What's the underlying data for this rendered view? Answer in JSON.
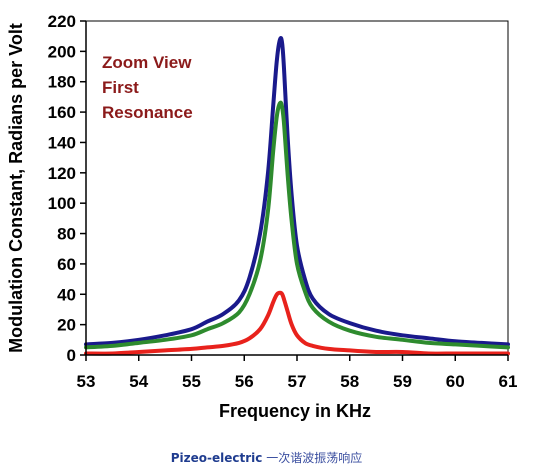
{
  "chart_data": {
    "type": "line",
    "title": "",
    "xlabel": "Frequency in KHz",
    "ylabel": "Modulation Constant, Radians per Volt",
    "xlim": [
      53,
      61
    ],
    "ylim": [
      0,
      220
    ],
    "xticks": [
      "53",
      "54",
      "55",
      "56",
      "57",
      "58",
      "59",
      "60",
      "61"
    ],
    "yticks": [
      "0",
      "20",
      "40",
      "60",
      "80",
      "100",
      "120",
      "140",
      "160",
      "180",
      "200",
      "220"
    ],
    "grid": false,
    "legend": "none",
    "annotation_lines": [
      "Zoom View",
      "First",
      "Resonance"
    ],
    "series": [
      {
        "color": "#1a1a8c",
        "x": [
          53,
          53.5,
          54,
          54.5,
          55,
          55.3,
          55.6,
          55.9,
          56.1,
          56.3,
          56.45,
          56.55,
          56.62,
          56.68,
          56.72,
          56.76,
          56.82,
          56.9,
          57.0,
          57.15,
          57.3,
          57.6,
          58,
          58.5,
          59,
          59.5,
          60,
          60.5,
          61
        ],
        "y": [
          7,
          8,
          10,
          13,
          17,
          22,
          27,
          36,
          51,
          80,
          120,
          165,
          195,
          208,
          205,
          185,
          145,
          105,
          72,
          50,
          37,
          27,
          21,
          16,
          13,
          11,
          9,
          8,
          7
        ]
      },
      {
        "color": "#2e8b2e",
        "x": [
          53,
          53.5,
          54,
          54.5,
          55,
          55.3,
          55.6,
          55.9,
          56.1,
          56.3,
          56.45,
          56.55,
          56.62,
          56.68,
          56.72,
          56.76,
          56.82,
          56.9,
          57.0,
          57.15,
          57.3,
          57.6,
          58,
          58.5,
          59,
          59.5,
          60,
          60.5,
          61
        ],
        "y": [
          5,
          6,
          8,
          10,
          13,
          17,
          21,
          28,
          40,
          62,
          95,
          135,
          158,
          166,
          163,
          150,
          120,
          88,
          60,
          42,
          31,
          22,
          16,
          12,
          10,
          8,
          7,
          6,
          5
        ]
      },
      {
        "color": "#e8221c",
        "x": [
          53,
          53.5,
          54,
          54.5,
          55,
          55.3,
          55.6,
          55.9,
          56.1,
          56.3,
          56.45,
          56.55,
          56.62,
          56.68,
          56.72,
          56.76,
          56.82,
          56.9,
          57.0,
          57.15,
          57.3,
          57.6,
          58,
          58.5,
          59,
          59.5,
          60,
          60.5,
          61
        ],
        "y": [
          1,
          1,
          2,
          3,
          4,
          5,
          6,
          8,
          11,
          17,
          26,
          35,
          40,
          41,
          40,
          36,
          29,
          20,
          13,
          8,
          6,
          4,
          3,
          2,
          2,
          1,
          1,
          1,
          1
        ]
      }
    ]
  },
  "caption": {
    "english": "Pizeo-electric",
    "chinese": " 一次谐波振荡响应"
  }
}
